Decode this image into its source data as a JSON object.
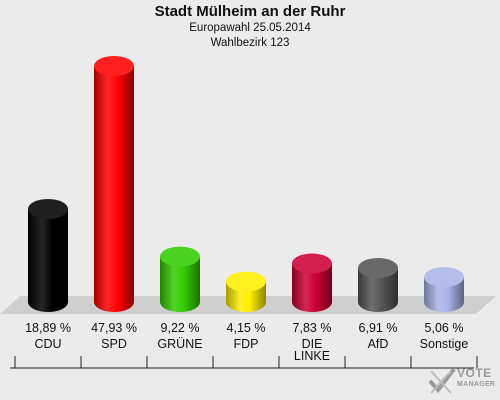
{
  "header": {
    "title": "Stadt Mülheim an der Ruhr",
    "subtitle": "Europawahl 25.05.2014",
    "district": "Wahlbezirk 123"
  },
  "chart_data": {
    "type": "bar",
    "title": "Stadt Mülheim an der Ruhr",
    "subtitle": "Europawahl 25.05.2014 / Wahlbezirk 123",
    "categories": [
      "CDU",
      "SPD",
      "GRÜNE",
      "FDP",
      "DIE LINKE",
      "AfD",
      "Sonstige"
    ],
    "category_lines": [
      [
        "CDU"
      ],
      [
        "SPD"
      ],
      [
        "GRÜNE"
      ],
      [
        "FDP"
      ],
      [
        "DIE",
        "LINKE"
      ],
      [
        "AfD"
      ],
      [
        "Sonstige"
      ]
    ],
    "values": [
      18.89,
      47.93,
      9.22,
      4.15,
      7.83,
      6.91,
      5.06
    ],
    "value_labels": [
      "18,89 %",
      "47,93 %",
      "9,22 %",
      "4,15 %",
      "7,83 %",
      "6,91 %",
      "5,06 %"
    ],
    "colors": [
      "#000000",
      "#ff0000",
      "#33cc00",
      "#ffee00",
      "#cc0033",
      "#555555",
      "#aab4e6"
    ],
    "ylim": [
      0,
      50
    ],
    "grid": false,
    "legend": "none"
  },
  "brand": {
    "line1": "VOTE",
    "line2": "MANAGER"
  }
}
